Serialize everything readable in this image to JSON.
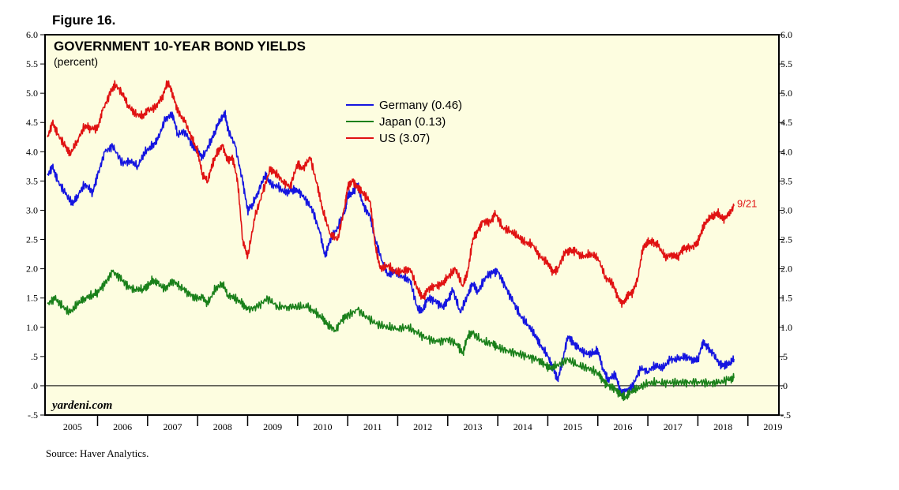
{
  "figure_label": "Figure 16.",
  "source": "Source: Haver Analytics.",
  "brand": "yardeni.com",
  "end_label": "9/21",
  "colors": {
    "background": "#fdfde0",
    "Germany": "#1515e0",
    "Japan": "#1a801a",
    "US": "#e01212"
  },
  "chart_data": {
    "type": "line",
    "title": "GOVERNMENT 10-YEAR BOND YIELDS",
    "subtitle": "(percent)",
    "xlabel": "",
    "ylabel": "",
    "xlim": [
      2004.95,
      2019.62
    ],
    "ylim": [
      -0.5,
      6.0
    ],
    "y_ticks": [
      {
        "v": 6.0,
        "label": "6.0"
      },
      {
        "v": 5.5,
        "label": "5.5"
      },
      {
        "v": 5.0,
        "label": "5.0"
      },
      {
        "v": 4.5,
        "label": "4.5"
      },
      {
        "v": 4.0,
        "label": "4.0"
      },
      {
        "v": 3.5,
        "label": "3.5"
      },
      {
        "v": 3.0,
        "label": "3.0"
      },
      {
        "v": 2.5,
        "label": "2.5"
      },
      {
        "v": 2.0,
        "label": "2.0"
      },
      {
        "v": 1.5,
        "label": "1.5"
      },
      {
        "v": 1.0,
        "label": "1.0"
      },
      {
        "v": 0.5,
        "label": ".5"
      },
      {
        "v": 0.0,
        "label": ".0"
      },
      {
        "v": -0.5,
        "label": "-.5"
      }
    ],
    "x_ticks": [
      "2005",
      "2006",
      "2007",
      "2008",
      "2009",
      "2010",
      "2011",
      "2012",
      "2013",
      "2014",
      "2015",
      "2016",
      "2017",
      "2018",
      "2019"
    ],
    "legend_position": "top-center",
    "grid": false,
    "zero_line": true,
    "series": [
      {
        "name": "Germany (0.46)",
        "key": "Germany",
        "x": [
          2005.0,
          2005.1,
          2005.2,
          2005.35,
          2005.5,
          2005.6,
          2005.75,
          2005.9,
          2006.0,
          2006.15,
          2006.3,
          2006.5,
          2006.65,
          2006.8,
          2006.95,
          2007.1,
          2007.2,
          2007.35,
          2007.5,
          2007.6,
          2007.75,
          2007.9,
          2008.0,
          2008.1,
          2008.25,
          2008.35,
          2008.45,
          2008.55,
          2008.6,
          2008.75,
          2008.9,
          2009.0,
          2009.1,
          2009.2,
          2009.35,
          2009.45,
          2009.6,
          2009.75,
          2009.9,
          2010.0,
          2010.15,
          2010.3,
          2010.45,
          2010.55,
          2010.65,
          2010.8,
          2010.95,
          2011.0,
          2011.1,
          2011.2,
          2011.3,
          2011.45,
          2011.55,
          2011.7,
          2011.8,
          2011.95,
          2012.1,
          2012.25,
          2012.4,
          2012.5,
          2012.6,
          2012.75,
          2012.9,
          2013.0,
          2013.1,
          2013.25,
          2013.4,
          2013.5,
          2013.6,
          2013.75,
          2013.9,
          2014.0,
          2014.15,
          2014.3,
          2014.45,
          2014.6,
          2014.75,
          2014.85,
          2015.0,
          2015.1,
          2015.2,
          2015.3,
          2015.4,
          2015.5,
          2015.6,
          2015.75,
          2015.9,
          2016.0,
          2016.1,
          2016.2,
          2016.35,
          2016.45,
          2016.55,
          2016.7,
          2016.85,
          2017.0,
          2017.15,
          2017.3,
          2017.45,
          2017.6,
          2017.75,
          2017.9,
          2018.0,
          2018.1,
          2018.2,
          2018.3,
          2018.45,
          2018.55,
          2018.65,
          2018.72
        ],
        "values": [
          3.6,
          3.75,
          3.5,
          3.3,
          3.1,
          3.25,
          3.45,
          3.3,
          3.6,
          4.0,
          4.1,
          3.8,
          3.85,
          3.75,
          4.0,
          4.1,
          4.2,
          4.55,
          4.65,
          4.3,
          4.35,
          4.1,
          4.0,
          3.9,
          4.15,
          4.35,
          4.55,
          4.65,
          4.4,
          4.1,
          3.5,
          3.0,
          3.1,
          3.3,
          3.6,
          3.45,
          3.4,
          3.3,
          3.35,
          3.35,
          3.2,
          3.0,
          2.6,
          2.2,
          2.5,
          2.7,
          3.0,
          3.25,
          3.3,
          3.45,
          3.1,
          2.9,
          2.5,
          2.1,
          1.9,
          1.95,
          1.85,
          1.8,
          1.3,
          1.3,
          1.5,
          1.45,
          1.35,
          1.45,
          1.65,
          1.25,
          1.55,
          1.75,
          1.6,
          1.85,
          1.95,
          1.95,
          1.7,
          1.45,
          1.2,
          1.05,
          0.85,
          0.7,
          0.5,
          0.3,
          0.1,
          0.45,
          0.85,
          0.75,
          0.65,
          0.55,
          0.55,
          0.6,
          0.3,
          0.1,
          0.2,
          -0.1,
          -0.1,
          0.0,
          0.3,
          0.25,
          0.35,
          0.3,
          0.45,
          0.45,
          0.5,
          0.45,
          0.45,
          0.75,
          0.65,
          0.55,
          0.35,
          0.35,
          0.4,
          0.46
        ]
      },
      {
        "name": "Japan (0.13)",
        "key": "Japan",
        "x": [
          2005.0,
          2005.15,
          2005.3,
          2005.45,
          2005.6,
          2005.75,
          2005.9,
          2006.0,
          2006.15,
          2006.3,
          2006.45,
          2006.6,
          2006.75,
          2006.9,
          2007.0,
          2007.1,
          2007.2,
          2007.35,
          2007.5,
          2007.65,
          2007.8,
          2007.95,
          2008.1,
          2008.2,
          2008.35,
          2008.5,
          2008.6,
          2008.75,
          2008.9,
          2009.0,
          2009.2,
          2009.4,
          2009.6,
          2009.8,
          2010.0,
          2010.2,
          2010.35,
          2010.5,
          2010.6,
          2010.75,
          2010.9,
          2011.0,
          2011.2,
          2011.4,
          2011.6,
          2011.8,
          2012.0,
          2012.2,
          2012.4,
          2012.6,
          2012.8,
          2013.0,
          2013.2,
          2013.3,
          2013.4,
          2013.5,
          2013.7,
          2013.9,
          2014.0,
          2014.2,
          2014.4,
          2014.6,
          2014.8,
          2014.95,
          2015.05,
          2015.2,
          2015.4,
          2015.6,
          2015.8,
          2016.0,
          2016.1,
          2016.2,
          2016.35,
          2016.45,
          2016.55,
          2016.65,
          2016.8,
          2017.0,
          2017.2,
          2017.4,
          2017.6,
          2017.8,
          2018.0,
          2018.2,
          2018.4,
          2018.6,
          2018.72
        ],
        "values": [
          1.4,
          1.5,
          1.35,
          1.25,
          1.4,
          1.5,
          1.55,
          1.6,
          1.75,
          1.95,
          1.85,
          1.7,
          1.65,
          1.65,
          1.7,
          1.8,
          1.75,
          1.65,
          1.8,
          1.7,
          1.6,
          1.5,
          1.5,
          1.4,
          1.65,
          1.75,
          1.55,
          1.5,
          1.4,
          1.3,
          1.35,
          1.5,
          1.35,
          1.35,
          1.35,
          1.35,
          1.25,
          1.15,
          1.05,
          0.95,
          1.15,
          1.2,
          1.3,
          1.15,
          1.05,
          1.0,
          0.98,
          1.0,
          0.9,
          0.8,
          0.75,
          0.8,
          0.7,
          0.55,
          0.85,
          0.9,
          0.75,
          0.72,
          0.65,
          0.6,
          0.55,
          0.5,
          0.45,
          0.35,
          0.3,
          0.35,
          0.45,
          0.35,
          0.3,
          0.22,
          0.1,
          0.0,
          -0.05,
          -0.15,
          -0.2,
          -0.1,
          -0.05,
          0.05,
          0.05,
          0.05,
          0.06,
          0.06,
          0.07,
          0.05,
          0.05,
          0.1,
          0.13
        ]
      },
      {
        "name": "US (3.07)",
        "key": "US",
        "x": [
          2005.0,
          2005.1,
          2005.2,
          2005.35,
          2005.45,
          2005.6,
          2005.75,
          2005.85,
          2006.0,
          2006.1,
          2006.25,
          2006.35,
          2006.5,
          2006.6,
          2006.75,
          2006.9,
          2007.0,
          2007.15,
          2007.3,
          2007.4,
          2007.5,
          2007.6,
          2007.75,
          2007.9,
          2008.0,
          2008.1,
          2008.2,
          2008.3,
          2008.4,
          2008.5,
          2008.6,
          2008.7,
          2008.8,
          2008.9,
          2009.0,
          2009.15,
          2009.3,
          2009.45,
          2009.55,
          2009.7,
          2009.85,
          2010.0,
          2010.1,
          2010.25,
          2010.4,
          2010.5,
          2010.65,
          2010.8,
          2010.95,
          2011.0,
          2011.1,
          2011.2,
          2011.3,
          2011.45,
          2011.55,
          2011.65,
          2011.8,
          2011.95,
          2012.1,
          2012.25,
          2012.4,
          2012.5,
          2012.6,
          2012.75,
          2012.9,
          2013.0,
          2013.15,
          2013.3,
          2013.4,
          2013.5,
          2013.6,
          2013.7,
          2013.85,
          2013.95,
          2014.1,
          2014.25,
          2014.4,
          2014.55,
          2014.7,
          2014.85,
          2015.0,
          2015.1,
          2015.2,
          2015.35,
          2015.45,
          2015.55,
          2015.7,
          2015.85,
          2016.0,
          2016.15,
          2016.3,
          2016.4,
          2016.5,
          2016.6,
          2016.7,
          2016.8,
          2016.9,
          2017.0,
          2017.1,
          2017.2,
          2017.35,
          2017.5,
          2017.6,
          2017.7,
          2017.8,
          2017.95,
          2018.0,
          2018.1,
          2018.2,
          2018.3,
          2018.4,
          2018.5,
          2018.6,
          2018.72
        ],
        "values": [
          4.25,
          4.5,
          4.3,
          4.1,
          3.95,
          4.2,
          4.45,
          4.4,
          4.4,
          4.7,
          5.0,
          5.15,
          5.0,
          4.8,
          4.65,
          4.6,
          4.7,
          4.75,
          4.95,
          5.2,
          5.0,
          4.7,
          4.5,
          4.2,
          4.0,
          3.6,
          3.5,
          3.8,
          4.0,
          4.1,
          3.85,
          3.9,
          3.5,
          2.5,
          2.2,
          2.9,
          3.3,
          3.7,
          3.65,
          3.5,
          3.4,
          3.8,
          3.7,
          3.9,
          3.4,
          3.0,
          2.6,
          2.5,
          3.1,
          3.4,
          3.5,
          3.4,
          3.3,
          3.15,
          2.4,
          2.0,
          2.05,
          1.95,
          1.95,
          2.0,
          1.65,
          1.5,
          1.65,
          1.7,
          1.75,
          1.85,
          2.0,
          1.7,
          1.95,
          2.5,
          2.65,
          2.8,
          2.8,
          2.95,
          2.7,
          2.65,
          2.55,
          2.45,
          2.4,
          2.2,
          2.1,
          1.95,
          2.0,
          2.3,
          2.3,
          2.3,
          2.2,
          2.25,
          2.2,
          1.85,
          1.75,
          1.5,
          1.4,
          1.55,
          1.6,
          1.85,
          2.35,
          2.45,
          2.45,
          2.4,
          2.2,
          2.25,
          2.2,
          2.35,
          2.35,
          2.4,
          2.45,
          2.7,
          2.85,
          2.9,
          2.95,
          2.85,
          2.9,
          3.07
        ]
      }
    ]
  }
}
